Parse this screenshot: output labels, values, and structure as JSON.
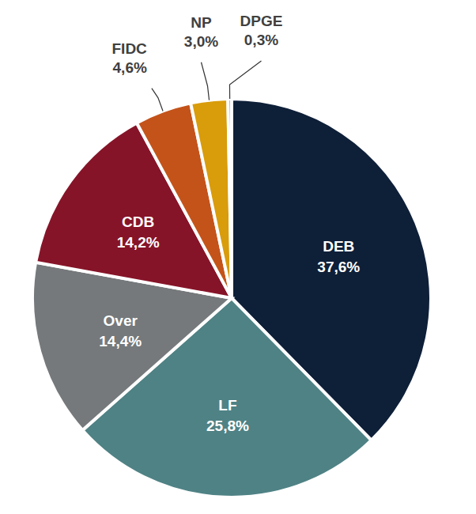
{
  "chart_data": {
    "type": "pie",
    "categories": [
      "DEB",
      "LF",
      "Over",
      "CDB",
      "FIDC",
      "NP",
      "DPGE"
    ],
    "values": [
      37.6,
      25.8,
      14.4,
      14.2,
      4.6,
      3.0,
      0.3
    ],
    "value_labels": [
      "37,6%",
      "25,8%",
      "14,4%",
      "14,2%",
      "4,6%",
      "3,0%",
      "0,3%"
    ],
    "colors": [
      "#0e1f38",
      "#4f8285",
      "#75797b",
      "#861428",
      "#c4531a",
      "#d99c0b",
      "#9a9a9a"
    ],
    "data_labels": true
  }
}
